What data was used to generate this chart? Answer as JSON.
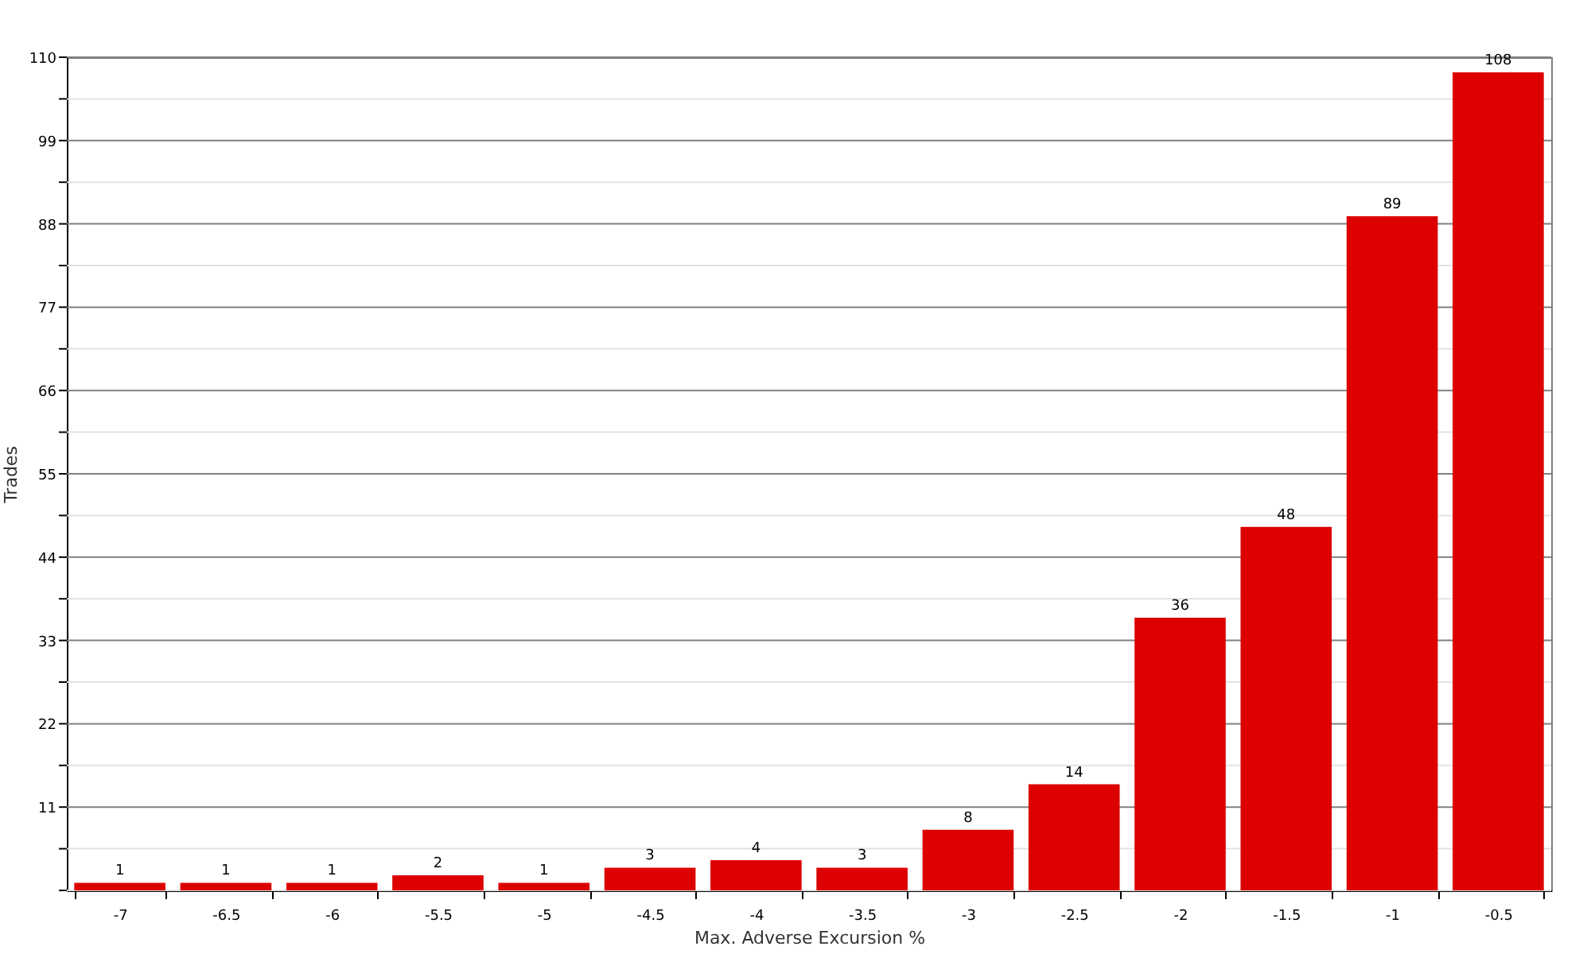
{
  "chart_data": {
    "type": "bar",
    "xlabel": "Max. Adverse Excursion %",
    "ylabel": "Trades",
    "categories": [
      "-7",
      "-6.5",
      "-6",
      "-5.5",
      "-5",
      "-4.5",
      "-4",
      "-3.5",
      "-3",
      "-2.5",
      "-2",
      "-1.5",
      "-1",
      "-0.5"
    ],
    "values": [
      1,
      1,
      1,
      2,
      1,
      3,
      4,
      3,
      8,
      14,
      36,
      48,
      89,
      108
    ],
    "color": "#dd0000",
    "ylim": [
      0,
      110
    ],
    "yticks": [
      {
        "value": 0,
        "label": null
      },
      {
        "value": 5.5,
        "label": null
      },
      11,
      {
        "value": 16.5,
        "label": null
      },
      22,
      {
        "value": 27.5,
        "label": null
      },
      33,
      {
        "value": 38.5,
        "label": null
      },
      44,
      {
        "value": 49.5,
        "label": null
      },
      55,
      {
        "value": 60.5,
        "label": null
      },
      66,
      {
        "value": 71.5,
        "label": null
      },
      77,
      {
        "value": 82.5,
        "label": null
      },
      88,
      {
        "value": 93.5,
        "label": null
      },
      99,
      {
        "value": 104.5,
        "label": null
      },
      110
    ],
    "grid": true,
    "data_labels": true
  }
}
